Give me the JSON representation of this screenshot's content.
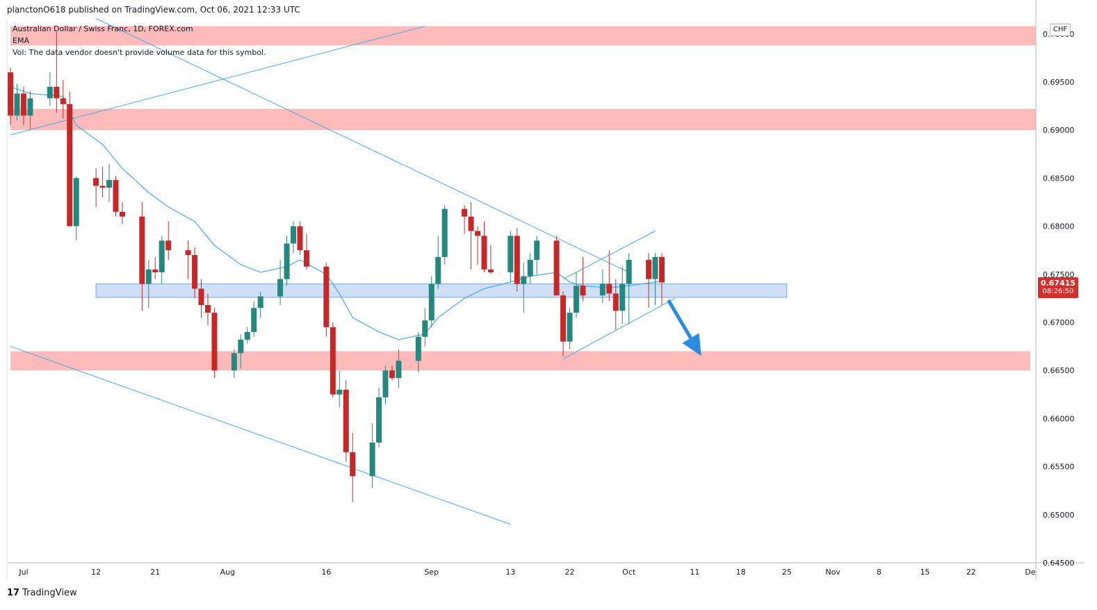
{
  "header": {
    "published": "planctonO618 published on TradingView.com, Oct 06, 2021 12:33 UTC"
  },
  "legend": {
    "symbol": "Australian Dollar / Swiss Franc, 1D, FOREX.com",
    "ema": "EMA",
    "vol": "Vol: The data vendor doesn't provide volume data for this symbol."
  },
  "price_axis": {
    "currency": "CHF",
    "last_price": "0.67415",
    "countdown": "08:26:50"
  },
  "footer": {
    "brand": "TradingView",
    "logo_icon": "tradingview-logo-icon"
  },
  "colors": {
    "up": "#26877f",
    "down": "#c62828",
    "zone": "#ffb3b3",
    "support": "#c6d9f5",
    "trend": "#4aa8e8",
    "arrow": "#2b8ae2",
    "last_price": "#d32f2f"
  },
  "chart_data": {
    "type": "candlestick",
    "ylim": [
      0.645,
      0.7015
    ],
    "y_ticks": [
      0.645,
      0.65,
      0.655,
      0.66,
      0.665,
      0.67,
      0.675,
      0.68,
      0.685,
      0.69,
      0.695,
      0.7
    ],
    "y_tick_labels": [
      "0.64500",
      "0.65000",
      "0.65500",
      "0.66000",
      "0.66500",
      "0.67000",
      "0.67500",
      "0.68000",
      "0.68500",
      "0.69000",
      "0.69500",
      "0.70000"
    ],
    "x_ticks": [
      {
        "date": "2021-07-01",
        "label": "Jul"
      },
      {
        "date": "2021-07-12",
        "label": "12"
      },
      {
        "date": "2021-07-21",
        "label": "21"
      },
      {
        "date": "2021-08-01",
        "label": "Aug"
      },
      {
        "date": "2021-08-16",
        "label": "16"
      },
      {
        "date": "2021-09-01",
        "label": "Sep"
      },
      {
        "date": "2021-09-13",
        "label": "13"
      },
      {
        "date": "2021-09-22",
        "label": "22"
      },
      {
        "date": "2021-10-01",
        "label": "Oct"
      },
      {
        "date": "2021-10-11",
        "label": "11"
      },
      {
        "date": "2021-10-18",
        "label": "18"
      },
      {
        "date": "2021-10-25",
        "label": "25"
      },
      {
        "date": "2021-11-01",
        "label": "Nov"
      },
      {
        "date": "2021-11-08",
        "label": "8"
      },
      {
        "date": "2021-11-15",
        "label": "15"
      },
      {
        "date": "2021-11-22",
        "label": "22"
      },
      {
        "date": "2021-12-01",
        "label": "De"
      }
    ],
    "candles": [
      {
        "d": "2021-06-29",
        "o": 0.696,
        "h": 0.6965,
        "l": 0.6905,
        "c": 0.6915
      },
      {
        "d": "2021-06-30",
        "o": 0.6915,
        "h": 0.6948,
        "l": 0.691,
        "c": 0.6938
      },
      {
        "d": "2021-07-01",
        "o": 0.6938,
        "h": 0.6945,
        "l": 0.6905,
        "c": 0.6915
      },
      {
        "d": "2021-07-02",
        "o": 0.6915,
        "h": 0.694,
        "l": 0.69,
        "c": 0.6933
      },
      {
        "d": "2021-07-05",
        "o": 0.6933,
        "h": 0.696,
        "l": 0.6925,
        "c": 0.6945
      },
      {
        "d": "2021-07-06",
        "o": 0.6945,
        "h": 0.7002,
        "l": 0.6918,
        "c": 0.6933
      },
      {
        "d": "2021-07-07",
        "o": 0.6933,
        "h": 0.6952,
        "l": 0.6912,
        "c": 0.6927
      },
      {
        "d": "2021-07-08",
        "o": 0.6927,
        "h": 0.694,
        "l": 0.6805,
        "c": 0.68
      },
      {
        "d": "2021-07-09",
        "o": 0.68,
        "h": 0.6852,
        "l": 0.6785,
        "c": 0.685
      },
      {
        "d": "2021-07-12",
        "o": 0.685,
        "h": 0.686,
        "l": 0.682,
        "c": 0.6842
      },
      {
        "d": "2021-07-13",
        "o": 0.6842,
        "h": 0.6862,
        "l": 0.683,
        "c": 0.684
      },
      {
        "d": "2021-07-14",
        "o": 0.684,
        "h": 0.6865,
        "l": 0.6825,
        "c": 0.6848
      },
      {
        "d": "2021-07-15",
        "o": 0.6848,
        "h": 0.6852,
        "l": 0.681,
        "c": 0.6815
      },
      {
        "d": "2021-07-16",
        "o": 0.6815,
        "h": 0.6825,
        "l": 0.6802,
        "c": 0.681
      },
      {
        "d": "2021-07-19",
        "o": 0.681,
        "h": 0.6825,
        "l": 0.6712,
        "c": 0.674
      },
      {
        "d": "2021-07-20",
        "o": 0.674,
        "h": 0.6765,
        "l": 0.6715,
        "c": 0.6755
      },
      {
        "d": "2021-07-21",
        "o": 0.6755,
        "h": 0.6768,
        "l": 0.6745,
        "c": 0.6752
      },
      {
        "d": "2021-07-22",
        "o": 0.6752,
        "h": 0.679,
        "l": 0.674,
        "c": 0.6785
      },
      {
        "d": "2021-07-23",
        "o": 0.6785,
        "h": 0.6805,
        "l": 0.6765,
        "c": 0.6775
      },
      {
        "d": "2021-07-26",
        "o": 0.6775,
        "h": 0.6785,
        "l": 0.6745,
        "c": 0.677
      },
      {
        "d": "2021-07-27",
        "o": 0.677,
        "h": 0.6778,
        "l": 0.6725,
        "c": 0.6735
      },
      {
        "d": "2021-07-28",
        "o": 0.6735,
        "h": 0.6745,
        "l": 0.6705,
        "c": 0.6718
      },
      {
        "d": "2021-07-29",
        "o": 0.6718,
        "h": 0.673,
        "l": 0.6697,
        "c": 0.671
      },
      {
        "d": "2021-07-30",
        "o": 0.671,
        "h": 0.6715,
        "l": 0.6642,
        "c": 0.665
      },
      {
        "d": "2021-08-02",
        "o": 0.665,
        "h": 0.6672,
        "l": 0.6642,
        "c": 0.6668
      },
      {
        "d": "2021-08-03",
        "o": 0.6668,
        "h": 0.6687,
        "l": 0.6652,
        "c": 0.6682
      },
      {
        "d": "2021-08-04",
        "o": 0.6682,
        "h": 0.6695,
        "l": 0.6678,
        "c": 0.669
      },
      {
        "d": "2021-08-05",
        "o": 0.669,
        "h": 0.6722,
        "l": 0.6685,
        "c": 0.6715
      },
      {
        "d": "2021-08-06",
        "o": 0.6715,
        "h": 0.6732,
        "l": 0.6705,
        "c": 0.6727
      },
      {
        "d": "2021-08-09",
        "o": 0.6727,
        "h": 0.6765,
        "l": 0.6718,
        "c": 0.6745
      },
      {
        "d": "2021-08-10",
        "o": 0.6745,
        "h": 0.679,
        "l": 0.6738,
        "c": 0.6782
      },
      {
        "d": "2021-08-11",
        "o": 0.6782,
        "h": 0.6805,
        "l": 0.6772,
        "c": 0.68
      },
      {
        "d": "2021-08-12",
        "o": 0.68,
        "h": 0.6805,
        "l": 0.677,
        "c": 0.6775
      },
      {
        "d": "2021-08-13",
        "o": 0.6775,
        "h": 0.6792,
        "l": 0.6755,
        "c": 0.6758
      },
      {
        "d": "2021-08-16",
        "o": 0.6758,
        "h": 0.6762,
        "l": 0.6685,
        "c": 0.6695
      },
      {
        "d": "2021-08-17",
        "o": 0.6695,
        "h": 0.67,
        "l": 0.6622,
        "c": 0.6625
      },
      {
        "d": "2021-08-18",
        "o": 0.6625,
        "h": 0.665,
        "l": 0.6612,
        "c": 0.663
      },
      {
        "d": "2021-08-19",
        "o": 0.663,
        "h": 0.664,
        "l": 0.6555,
        "c": 0.6565
      },
      {
        "d": "2021-08-20",
        "o": 0.6565,
        "h": 0.6585,
        "l": 0.6513,
        "c": 0.654
      },
      {
        "d": "2021-08-23",
        "o": 0.654,
        "h": 0.6595,
        "l": 0.6528,
        "c": 0.6575
      },
      {
        "d": "2021-08-24",
        "o": 0.6575,
        "h": 0.6632,
        "l": 0.657,
        "c": 0.6622
      },
      {
        "d": "2021-08-25",
        "o": 0.6622,
        "h": 0.6655,
        "l": 0.6615,
        "c": 0.665
      },
      {
        "d": "2021-08-26",
        "o": 0.665,
        "h": 0.6655,
        "l": 0.664,
        "c": 0.6642
      },
      {
        "d": "2021-08-27",
        "o": 0.6642,
        "h": 0.6672,
        "l": 0.6632,
        "c": 0.666
      },
      {
        "d": "2021-08-30",
        "o": 0.666,
        "h": 0.669,
        "l": 0.6648,
        "c": 0.6685
      },
      {
        "d": "2021-08-31",
        "o": 0.6685,
        "h": 0.6715,
        "l": 0.6675,
        "c": 0.6702
      },
      {
        "d": "2021-09-01",
        "o": 0.6702,
        "h": 0.6748,
        "l": 0.6695,
        "c": 0.674
      },
      {
        "d": "2021-09-02",
        "o": 0.674,
        "h": 0.679,
        "l": 0.6735,
        "c": 0.6768
      },
      {
        "d": "2021-09-03",
        "o": 0.6768,
        "h": 0.6822,
        "l": 0.676,
        "c": 0.6818
      },
      {
        "d": "2021-09-06",
        "o": 0.6818,
        "h": 0.6822,
        "l": 0.6792,
        "c": 0.681
      },
      {
        "d": "2021-09-07",
        "o": 0.681,
        "h": 0.6825,
        "l": 0.6755,
        "c": 0.6795
      },
      {
        "d": "2021-09-08",
        "o": 0.6795,
        "h": 0.68,
        "l": 0.676,
        "c": 0.679
      },
      {
        "d": "2021-09-09",
        "o": 0.679,
        "h": 0.6805,
        "l": 0.6752,
        "c": 0.6755
      },
      {
        "d": "2021-09-10",
        "o": 0.6755,
        "h": 0.678,
        "l": 0.675,
        "c": 0.6752
      },
      {
        "d": "2021-09-13",
        "o": 0.6752,
        "h": 0.6795,
        "l": 0.6742,
        "c": 0.679
      },
      {
        "d": "2021-09-14",
        "o": 0.679,
        "h": 0.6798,
        "l": 0.6732,
        "c": 0.674
      },
      {
        "d": "2021-09-15",
        "o": 0.674,
        "h": 0.6762,
        "l": 0.671,
        "c": 0.6748
      },
      {
        "d": "2021-09-16",
        "o": 0.6748,
        "h": 0.6772,
        "l": 0.674,
        "c": 0.6765
      },
      {
        "d": "2021-09-17",
        "o": 0.6765,
        "h": 0.679,
        "l": 0.675,
        "c": 0.6785
      },
      {
        "d": "2021-09-20",
        "o": 0.6785,
        "h": 0.679,
        "l": 0.6728,
        "c": 0.6728
      },
      {
        "d": "2021-09-21",
        "o": 0.6728,
        "h": 0.6732,
        "l": 0.6665,
        "c": 0.668
      },
      {
        "d": "2021-09-22",
        "o": 0.668,
        "h": 0.6715,
        "l": 0.6672,
        "c": 0.671
      },
      {
        "d": "2021-09-23",
        "o": 0.671,
        "h": 0.6752,
        "l": 0.6705,
        "c": 0.6738
      },
      {
        "d": "2021-09-24",
        "o": 0.6738,
        "h": 0.6768,
        "l": 0.6722,
        "c": 0.6728
      },
      {
        "d": "2021-09-27",
        "o": 0.6728,
        "h": 0.6755,
        "l": 0.672,
        "c": 0.674
      },
      {
        "d": "2021-09-28",
        "o": 0.674,
        "h": 0.6775,
        "l": 0.6722,
        "c": 0.673
      },
      {
        "d": "2021-09-29",
        "o": 0.673,
        "h": 0.6745,
        "l": 0.6692,
        "c": 0.6712
      },
      {
        "d": "2021-09-30",
        "o": 0.6712,
        "h": 0.6758,
        "l": 0.6698,
        "c": 0.674
      },
      {
        "d": "2021-10-01",
        "o": 0.674,
        "h": 0.6772,
        "l": 0.6698,
        "c": 0.6765
      },
      {
        "d": "2021-10-04",
        "o": 0.6765,
        "h": 0.6772,
        "l": 0.6715,
        "c": 0.6745
      },
      {
        "d": "2021-10-05",
        "o": 0.6745,
        "h": 0.6772,
        "l": 0.6718,
        "c": 0.6768
      },
      {
        "d": "2021-10-06",
        "o": 0.6768,
        "h": 0.6772,
        "l": 0.6718,
        "c": 0.67415
      }
    ],
    "ema": [
      [
        "2021-06-29",
        0.6945
      ],
      [
        "2021-07-02",
        0.6938
      ],
      [
        "2021-07-07",
        0.6935
      ],
      [
        "2021-07-09",
        0.6905
      ],
      [
        "2021-07-13",
        0.6885
      ],
      [
        "2021-07-16",
        0.686
      ],
      [
        "2021-07-20",
        0.6835
      ],
      [
        "2021-07-23",
        0.682
      ],
      [
        "2021-07-27",
        0.6805
      ],
      [
        "2021-07-30",
        0.678
      ],
      [
        "2021-08-03",
        0.676
      ],
      [
        "2021-08-06",
        0.6752
      ],
      [
        "2021-08-10",
        0.6758
      ],
      [
        "2021-08-12",
        0.6765
      ],
      [
        "2021-08-16",
        0.675
      ],
      [
        "2021-08-18",
        0.673
      ],
      [
        "2021-08-20",
        0.6705
      ],
      [
        "2021-08-24",
        0.669
      ],
      [
        "2021-08-27",
        0.6682
      ],
      [
        "2021-08-31",
        0.6688
      ],
      [
        "2021-09-02",
        0.6705
      ],
      [
        "2021-09-06",
        0.6725
      ],
      [
        "2021-09-09",
        0.6735
      ],
      [
        "2021-09-13",
        0.6742
      ],
      [
        "2021-09-16",
        0.6748
      ],
      [
        "2021-09-20",
        0.6752
      ],
      [
        "2021-09-22",
        0.6742
      ],
      [
        "2021-09-24",
        0.6738
      ],
      [
        "2021-09-28",
        0.6736
      ],
      [
        "2021-10-01",
        0.6738
      ],
      [
        "2021-10-06",
        0.6743
      ]
    ],
    "zones": [
      {
        "color": "zone",
        "from": "2021-06-29",
        "to": "end",
        "low": 0.6988,
        "high": 0.7008
      },
      {
        "color": "zone",
        "from": "2021-06-29",
        "to": "end",
        "low": 0.69,
        "high": 0.6922
      },
      {
        "color": "zone",
        "from": "2021-06-29",
        "to": "2021-12-01",
        "low": 0.665,
        "high": 0.667
      },
      {
        "color": "support",
        "from": "2021-07-12",
        "to": "2021-10-25",
        "low": 0.6726,
        "high": 0.674
      }
    ],
    "trendlines": [
      [
        [
          "2021-06-29",
          0.6895
        ],
        [
          "2021-08-31",
          0.7008
        ]
      ],
      [
        [
          "2021-07-12",
          0.7016
        ],
        [
          "2021-10-01",
          0.6752
        ]
      ],
      [
        [
          "2021-06-29",
          0.6675
        ],
        [
          "2021-09-13",
          0.649
        ]
      ],
      [
        [
          "2021-09-21",
          0.6662
        ],
        [
          "2021-10-08",
          0.6725
        ]
      ],
      [
        [
          "2021-09-21",
          0.6745
        ],
        [
          "2021-10-05",
          0.6795
        ]
      ]
    ],
    "arrow": [
      [
        "2021-10-07",
        0.6723
      ],
      [
        "2021-10-12",
        0.6665
      ]
    ]
  }
}
